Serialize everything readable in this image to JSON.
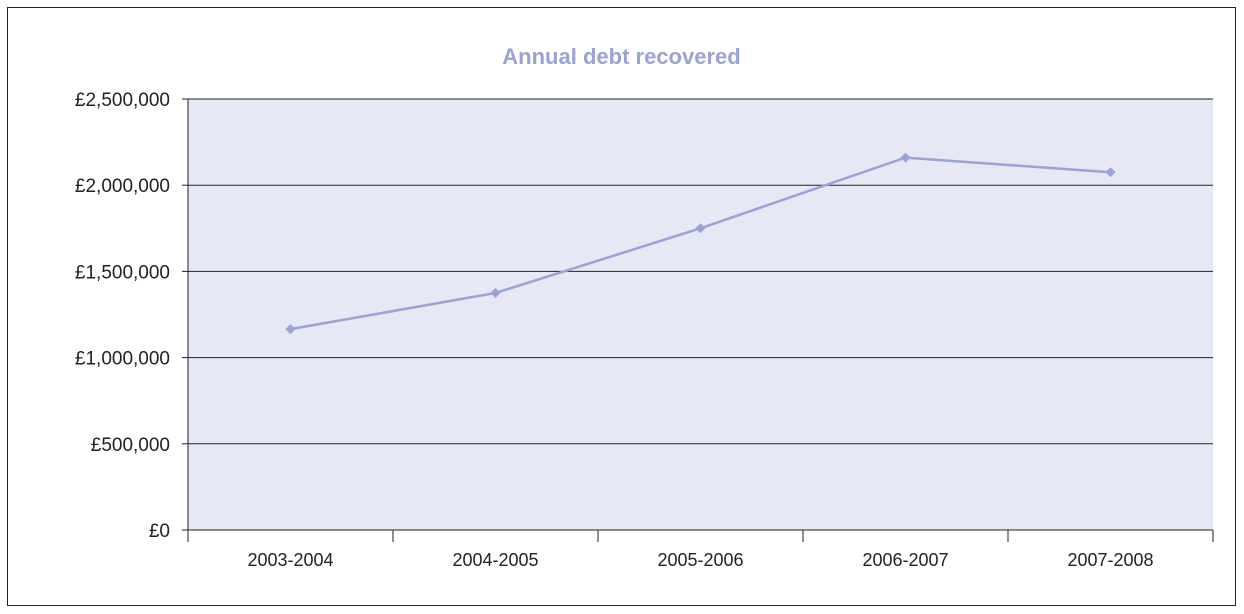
{
  "chart_data": {
    "type": "line",
    "title": "Annual debt recovered",
    "xlabel": "",
    "ylabel": "",
    "categories": [
      "2003-2004",
      "2004-2005",
      "2005-2006",
      "2006-2007",
      "2007-2008"
    ],
    "series": [
      {
        "values": [
          1165000,
          1375000,
          1750000,
          2160000,
          2075000
        ]
      }
    ],
    "y_ticks": [
      0,
      500000,
      1000000,
      1500000,
      2000000,
      2500000
    ],
    "y_tick_labels": [
      "£0",
      "£500,000",
      "£1,000,000",
      "£1,500,000",
      "£2,000,000",
      "£2,500,000"
    ],
    "ylim": [
      0,
      2500000
    ],
    "grid": "horizontal",
    "legend": "none",
    "colors": {
      "line": "#9aa3d3",
      "plot_background": "#e6e8f5",
      "title": "#9aa3d3",
      "gridline": "#222222"
    }
  }
}
